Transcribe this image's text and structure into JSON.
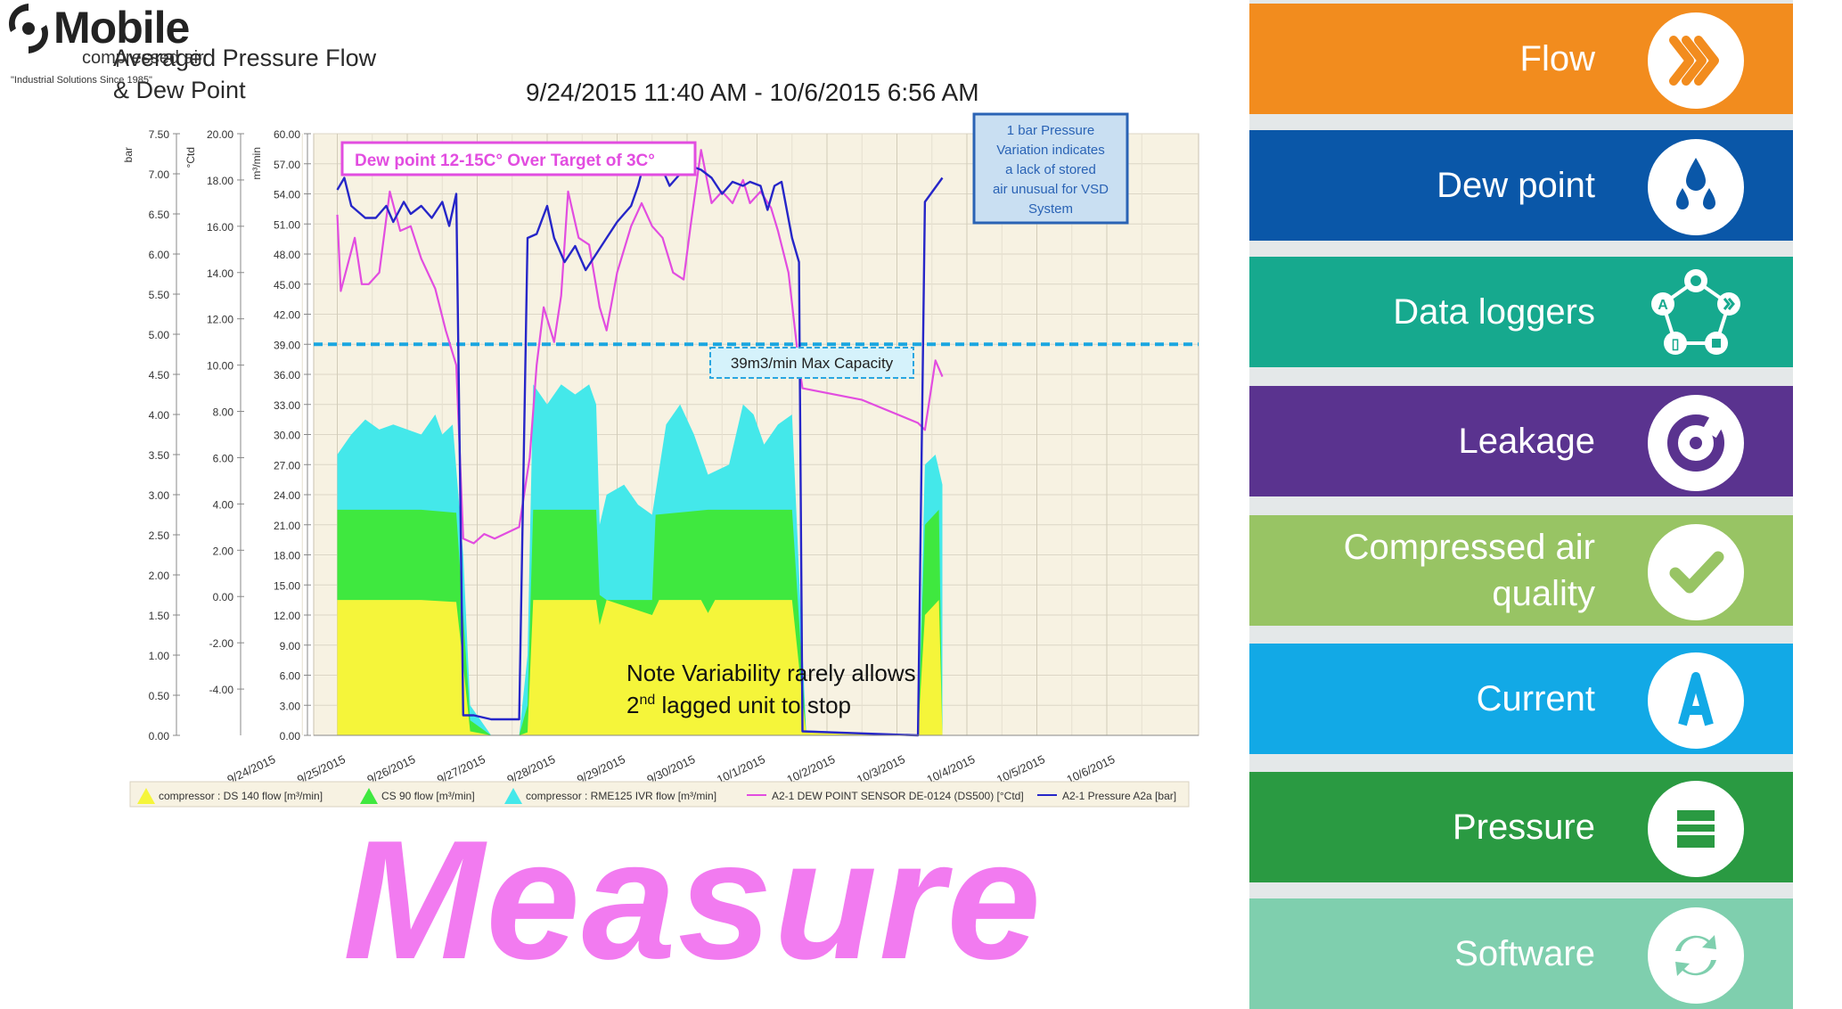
{
  "chart_title": "Averaged Pressure Flow\n& Dew Point",
  "chart_subtitle": "9/24/2015 11:40 AM - 10/6/2015 6:56 AM",
  "logo": {
    "word": "Mobile",
    "sub": "compressed air",
    "tagline": "\"Industrial Solutions Since 1985\""
  },
  "annotations": {
    "dew_target": "Dew point 12-15C° Over Target of 3C°",
    "pressure_note": "1 bar Pressure Variation indicates a lack of stored air unusual for VSD System",
    "max_capacity": "39m3/min Max Capacity",
    "variability_line1": "Note Variability rarely allows",
    "variability_line2_a": "2",
    "variability_line2_sup": "nd",
    "variability_line2_b": " lagged unit to stop"
  },
  "headline": "Measure",
  "colors": {
    "ds140": "#f5f53a",
    "cs90": "#3fe83f",
    "rme125": "#44e8ea",
    "dewpoint": "#e24de0",
    "pressure": "#2626c8",
    "capacity": "#1aa6e0",
    "headline": "#f27bf0"
  },
  "chart_data": {
    "type": "area",
    "axes": {
      "bar": {
        "label": "bar",
        "ylim": [
          0,
          7.5
        ],
        "ticks": [
          "0.00",
          "0.50",
          "1.00",
          "1.50",
          "2.00",
          "2.50",
          "3.00",
          "3.50",
          "4.00",
          "4.50",
          "5.00",
          "5.50",
          "6.00",
          "6.50",
          "7.00",
          "7.50"
        ]
      },
      "ctd": {
        "label": "°Ctd",
        "ylim": [
          -6,
          20
        ],
        "ticks": [
          "-4.00",
          "-2.00",
          "0.00",
          "2.00",
          "4.00",
          "6.00",
          "8.00",
          "10.00",
          "12.00",
          "14.00",
          "16.00",
          "18.00",
          "20.00"
        ]
      },
      "flow": {
        "label": "m³/min",
        "ylim": [
          0,
          60
        ],
        "ticks": [
          "0.00",
          "3.00",
          "6.00",
          "9.00",
          "12.00",
          "15.00",
          "18.00",
          "21.00",
          "24.00",
          "27.00",
          "30.00",
          "33.00",
          "36.00",
          "39.00",
          "42.00",
          "45.00",
          "48.00",
          "51.00",
          "54.00",
          "57.00",
          "60.00"
        ]
      }
    },
    "x_ticks": [
      "9/24/2015",
      "9/25/2015",
      "9/26/2015",
      "9/27/2015",
      "9/28/2015",
      "9/29/2015",
      "9/30/2015",
      "10/1/2015",
      "10/2/2015",
      "10/3/2015",
      "10/4/2015",
      "10/5/2015",
      "10/6/2015"
    ],
    "max_capacity": 39,
    "series": [
      {
        "name": "compressor : DS 140 flow [m³/min]",
        "axis": "flow",
        "points": [
          [
            1,
            13.5
          ],
          [
            2.2,
            13.5
          ],
          [
            2.7,
            13.3
          ],
          [
            2.8,
            7
          ],
          [
            2.9,
            0.4
          ],
          [
            3.2,
            0
          ],
          [
            3.6,
            0
          ],
          [
            3.72,
            0.3
          ],
          [
            3.8,
            13.5
          ],
          [
            4.7,
            13.5
          ],
          [
            4.75,
            11
          ],
          [
            4.85,
            13.5
          ],
          [
            5.5,
            12
          ],
          [
            5.6,
            13.5
          ],
          [
            6.2,
            13.5
          ],
          [
            6.3,
            12.2
          ],
          [
            6.4,
            13.5
          ],
          [
            7.5,
            13.5
          ],
          [
            7.7,
            0.3
          ],
          [
            9.3,
            0
          ],
          [
            9.4,
            12
          ],
          [
            9.6,
            13.5
          ],
          [
            9.65,
            0
          ]
        ]
      },
      {
        "name": "CS 90 flow [m³/min]",
        "axis": "flow",
        "points": [
          [
            1,
            22.5
          ],
          [
            2.2,
            22.5
          ],
          [
            2.7,
            22.2
          ],
          [
            2.8,
            12
          ],
          [
            2.9,
            1.5
          ],
          [
            3.2,
            0
          ],
          [
            3.6,
            0
          ],
          [
            3.72,
            3
          ],
          [
            3.8,
            22.5
          ],
          [
            4.7,
            22.5
          ],
          [
            4.75,
            14
          ],
          [
            4.85,
            13.5
          ],
          [
            5.5,
            13.5
          ],
          [
            5.55,
            22
          ],
          [
            6.3,
            22.5
          ],
          [
            7.5,
            22.5
          ],
          [
            7.7,
            0.4
          ],
          [
            9.3,
            0
          ],
          [
            9.4,
            21
          ],
          [
            9.6,
            22.5
          ],
          [
            9.65,
            0
          ]
        ]
      },
      {
        "name": "compressor : RME125 IVR flow [m³/min]",
        "axis": "flow",
        "points": [
          [
            1,
            28
          ],
          [
            1.2,
            30
          ],
          [
            1.4,
            31.5
          ],
          [
            1.6,
            30.5
          ],
          [
            1.8,
            31
          ],
          [
            2.0,
            30.5
          ],
          [
            2.2,
            30
          ],
          [
            2.4,
            32
          ],
          [
            2.5,
            30
          ],
          [
            2.65,
            31
          ],
          [
            2.8,
            18
          ],
          [
            2.9,
            3
          ],
          [
            3.2,
            0
          ],
          [
            3.6,
            0
          ],
          [
            3.72,
            8
          ],
          [
            3.8,
            35
          ],
          [
            4.0,
            33
          ],
          [
            4.2,
            35
          ],
          [
            4.4,
            34
          ],
          [
            4.6,
            35
          ],
          [
            4.7,
            33
          ],
          [
            4.75,
            21
          ],
          [
            4.85,
            24
          ],
          [
            5.1,
            25
          ],
          [
            5.3,
            23
          ],
          [
            5.5,
            22
          ],
          [
            5.7,
            31
          ],
          [
            5.9,
            33
          ],
          [
            6.1,
            30
          ],
          [
            6.3,
            26
          ],
          [
            6.6,
            27
          ],
          [
            6.8,
            33
          ],
          [
            6.95,
            32
          ],
          [
            7.1,
            29
          ],
          [
            7.3,
            31
          ],
          [
            7.5,
            32
          ],
          [
            7.7,
            0.5
          ],
          [
            9.3,
            0
          ],
          [
            9.4,
            27
          ],
          [
            9.55,
            28
          ],
          [
            9.65,
            25
          ]
        ]
      },
      {
        "name": "A2-1 DEW POINT SENSOR DE-0124 (DS500) [°Ctd]",
        "axis": "ctd",
        "points": [
          [
            1,
            16.5
          ],
          [
            1.05,
            13.2
          ],
          [
            1.25,
            15.5
          ],
          [
            1.35,
            13.5
          ],
          [
            1.45,
            13.5
          ],
          [
            1.6,
            14
          ],
          [
            1.75,
            17.5
          ],
          [
            1.9,
            15.8
          ],
          [
            2.05,
            16
          ],
          [
            2.2,
            14.6
          ],
          [
            2.4,
            13.3
          ],
          [
            2.55,
            11.5
          ],
          [
            2.7,
            10
          ],
          [
            2.8,
            2.5
          ],
          [
            2.95,
            2.3
          ],
          [
            3.1,
            2.7
          ],
          [
            3.25,
            2.5
          ],
          [
            3.6,
            3
          ],
          [
            3.75,
            6
          ],
          [
            3.85,
            10
          ],
          [
            3.95,
            12.5
          ],
          [
            4.1,
            11
          ],
          [
            4.2,
            13
          ],
          [
            4.3,
            17.5
          ],
          [
            4.45,
            15.5
          ],
          [
            4.6,
            15.2
          ],
          [
            4.75,
            12.5
          ],
          [
            4.85,
            11.5
          ],
          [
            5.0,
            14
          ],
          [
            5.2,
            16
          ],
          [
            5.35,
            17
          ],
          [
            5.5,
            16
          ],
          [
            5.65,
            15.5
          ],
          [
            5.8,
            14
          ],
          [
            5.95,
            13.7
          ],
          [
            6.05,
            16
          ],
          [
            6.2,
            19.3
          ],
          [
            6.35,
            17
          ],
          [
            6.5,
            17.5
          ],
          [
            6.65,
            17
          ],
          [
            6.8,
            18
          ],
          [
            6.9,
            17
          ],
          [
            7.05,
            17.5
          ],
          [
            7.2,
            16.8
          ],
          [
            7.3,
            15.8
          ],
          [
            7.45,
            14
          ],
          [
            7.6,
            10
          ],
          [
            7.65,
            9
          ],
          [
            8.5,
            8.5
          ],
          [
            9.3,
            7.5
          ],
          [
            9.4,
            7.2
          ],
          [
            9.55,
            10.2
          ],
          [
            9.65,
            9.5
          ]
        ]
      },
      {
        "name": "A2-1 Pressure A2a [bar]",
        "axis": "bar",
        "points": [
          [
            1,
            6.8
          ],
          [
            1.1,
            6.95
          ],
          [
            1.2,
            6.6
          ],
          [
            1.4,
            6.45
          ],
          [
            1.55,
            6.45
          ],
          [
            1.7,
            6.6
          ],
          [
            1.8,
            6.4
          ],
          [
            1.95,
            6.65
          ],
          [
            2.05,
            6.5
          ],
          [
            2.2,
            6.6
          ],
          [
            2.35,
            6.45
          ],
          [
            2.5,
            6.65
          ],
          [
            2.6,
            6.35
          ],
          [
            2.7,
            6.75
          ],
          [
            2.8,
            0.25
          ],
          [
            2.95,
            0.25
          ],
          [
            3.2,
            0.2
          ],
          [
            3.6,
            0.2
          ],
          [
            3.72,
            6.2
          ],
          [
            3.85,
            6.25
          ],
          [
            4.0,
            6.6
          ],
          [
            4.1,
            6.2
          ],
          [
            4.25,
            5.9
          ],
          [
            4.4,
            6.1
          ],
          [
            4.55,
            5.8
          ],
          [
            4.7,
            6.0
          ],
          [
            4.85,
            6.2
          ],
          [
            5.0,
            6.4
          ],
          [
            5.1,
            6.5
          ],
          [
            5.2,
            6.6
          ],
          [
            5.3,
            6.85
          ],
          [
            5.45,
            7.35
          ],
          [
            5.6,
            7.15
          ],
          [
            5.75,
            6.85
          ],
          [
            5.9,
            7.0
          ],
          [
            6.05,
            7.1
          ],
          [
            6.2,
            7.05
          ],
          [
            6.35,
            6.95
          ],
          [
            6.5,
            6.75
          ],
          [
            6.65,
            6.9
          ],
          [
            6.8,
            6.85
          ],
          [
            6.9,
            6.9
          ],
          [
            7.05,
            6.85
          ],
          [
            7.15,
            6.55
          ],
          [
            7.25,
            6.85
          ],
          [
            7.35,
            6.9
          ],
          [
            7.5,
            6.2
          ],
          [
            7.6,
            5.9
          ],
          [
            7.65,
            0.05
          ],
          [
            9.3,
            0
          ],
          [
            9.4,
            6.65
          ],
          [
            9.65,
            6.95
          ]
        ]
      }
    ]
  },
  "menu": [
    {
      "label": "Flow",
      "color": "#f28c1e",
      "icon": "flow-chevrons-icon"
    },
    {
      "label": "Dew point",
      "color": "#0a57a8",
      "icon": "dew-drops-icon"
    },
    {
      "label": "Data loggers",
      "color": "#16a98e",
      "icon": "data-logger-network-icon"
    },
    {
      "label": "Leakage",
      "color": "#5a338f",
      "icon": "leakage-target-icon"
    },
    {
      "label": "Compressed air\nquality",
      "color": "#98c464",
      "icon": "quality-check-icon"
    },
    {
      "label": "Current",
      "color": "#12a9e6",
      "icon": "current-ampere-icon"
    },
    {
      "label": "Pressure",
      "color": "#2a9a42",
      "icon": "pressure-gauge-icon"
    },
    {
      "label": "Software",
      "color": "#7fcfae",
      "icon": "software-refresh-icon"
    }
  ]
}
